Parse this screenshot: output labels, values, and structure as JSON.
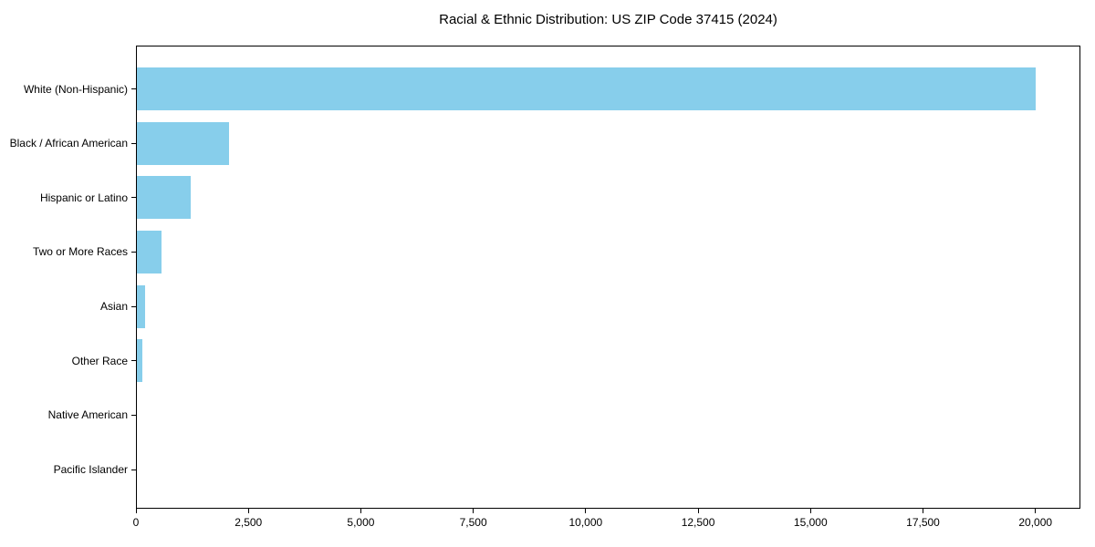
{
  "chart_data": {
    "type": "bar",
    "orientation": "horizontal",
    "title": "Racial & Ethnic Distribution: US ZIP Code 37415 (2024)",
    "categories": [
      "White (Non-Hispanic)",
      "Black / African American",
      "Hispanic or Latino",
      "Two or More Races",
      "Asian",
      "Other Race",
      "Native American",
      "Pacific Islander"
    ],
    "values": [
      20000,
      2070,
      1220,
      570,
      205,
      140,
      20,
      5
    ],
    "xlabel": "",
    "ylabel": "",
    "xlim": [
      0,
      21000
    ],
    "xticks": {
      "values": [
        0,
        2500,
        5000,
        7500,
        10000,
        12500,
        15000,
        17500,
        20000
      ],
      "labels": [
        "0",
        "2,500",
        "5,000",
        "7,500",
        "10,000",
        "12,500",
        "15,000",
        "17,500",
        "20,000"
      ]
    },
    "grid": false,
    "legend": null,
    "colors": {
      "bar_fill": "#87CEEB",
      "axis_line": "#000000",
      "text": "#000000",
      "background": "#ffffff"
    }
  }
}
